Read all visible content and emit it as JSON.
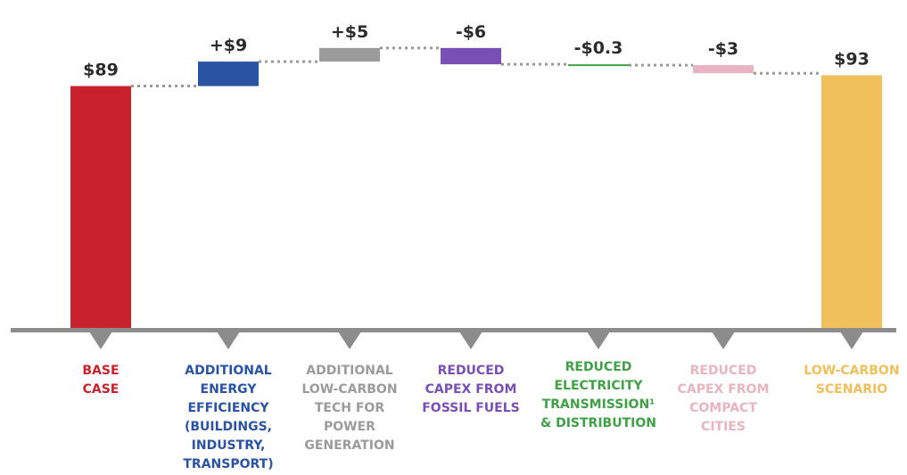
{
  "chart_data": {
    "type": "bar",
    "subtype": "waterfall",
    "categories": [
      "BASE\nCASE",
      "ADDITIONAL\nENERGY\nEFFICIENCY\n(BUILDINGS,\nINDUSTRY,\nTRANSPORT)",
      "ADDITIONAL\nLOW-CARBON\nTECH FOR\nPOWER\nGENERATION",
      "REDUCED\nCAPEX FROM\nFOSSIL FUELS",
      "REDUCED\nELECTRICITY\nTRANSMISSION¹\n& DISTRIBUTION",
      "REDUCED\nCAPEX FROM\nCOMPACT\nCITIES",
      "LOW-CARBON\nSCENARIO"
    ],
    "values": [
      89,
      9,
      5,
      -6,
      -0.3,
      -3,
      93
    ],
    "value_labels": [
      "$89",
      "+$9",
      "+$5",
      "-$6",
      "-$0.3",
      "-$3",
      "$93"
    ],
    "bar_kinds": [
      "total",
      "delta",
      "delta",
      "delta",
      "delta",
      "delta",
      "total"
    ],
    "colors": [
      "#c8232c",
      "#2a54a3",
      "#9b9b9b",
      "#7a4fb3",
      "#3fa046",
      "#e8b4c0",
      "#efc05c"
    ],
    "axis_color": "#8c8c8c",
    "connector_color": "#9a9a9a",
    "ylim": [
      0,
      98
    ],
    "grid": false,
    "legend": "none",
    "title": "",
    "xlabel": "",
    "ylabel": ""
  }
}
